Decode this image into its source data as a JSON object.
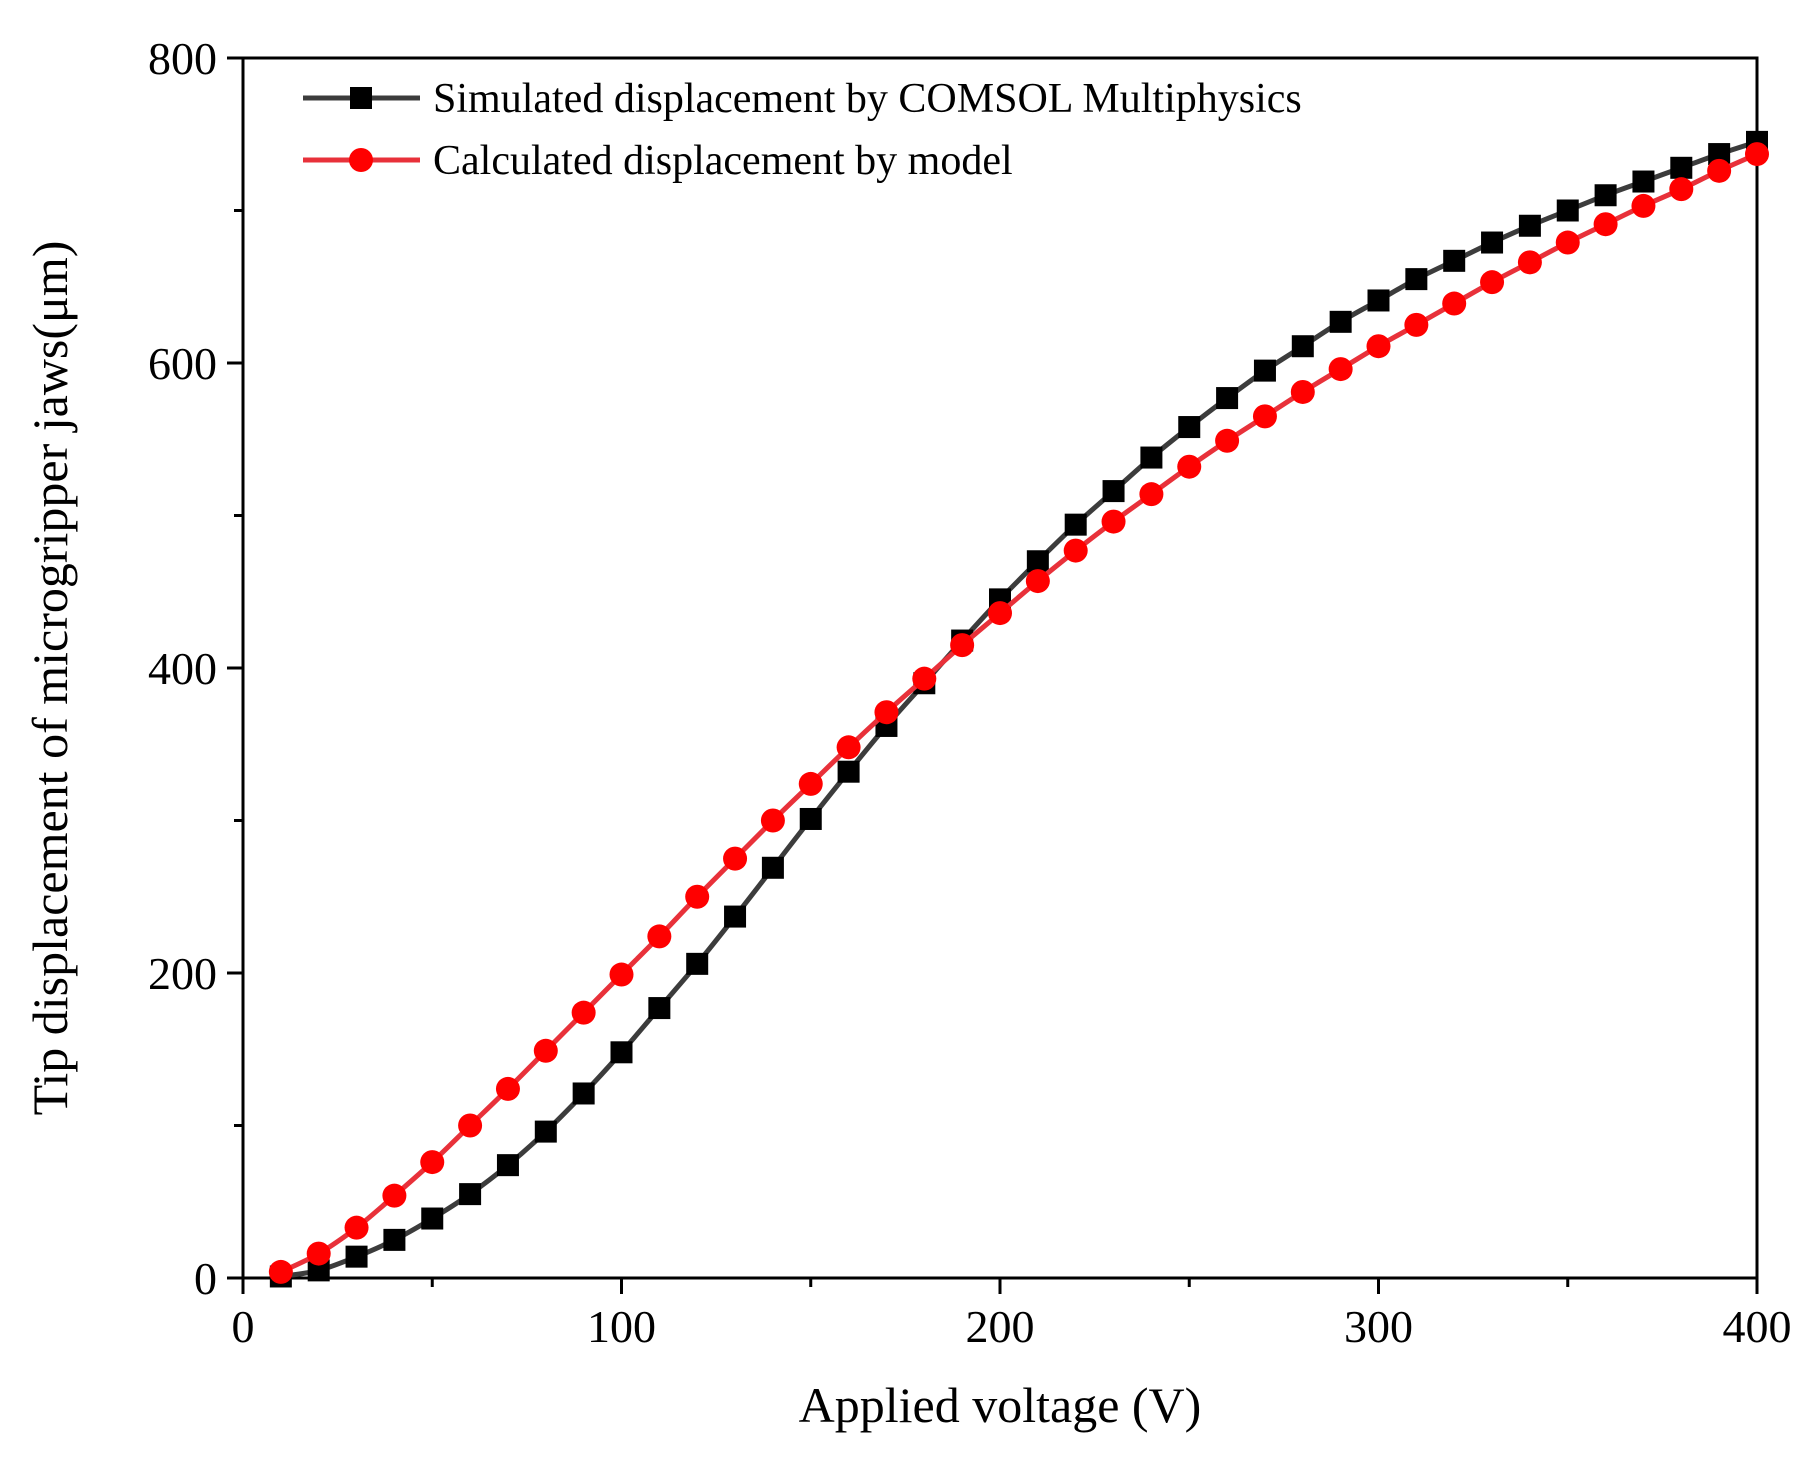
{
  "chart_data": {
    "type": "line",
    "title": "",
    "xlabel": "Applied voltage (V)",
    "ylabel": "Tip displacement of microgripper jaws(μm)",
    "xlim": [
      0,
      400
    ],
    "ylim": [
      0,
      800
    ],
    "xticks": [
      0,
      100,
      200,
      300,
      400
    ],
    "yticks": [
      0,
      200,
      400,
      600,
      800
    ],
    "x_tick_labels": [
      "0",
      "100",
      "200",
      "300",
      "400"
    ],
    "y_tick_labels": [
      "0",
      "200",
      "400",
      "600",
      "800"
    ],
    "grid": false,
    "legend_position": "top-left",
    "x": [
      10,
      20,
      30,
      40,
      50,
      60,
      70,
      80,
      90,
      100,
      110,
      120,
      130,
      140,
      150,
      160,
      170,
      180,
      190,
      200,
      210,
      220,
      230,
      240,
      250,
      260,
      270,
      280,
      290,
      300,
      310,
      320,
      330,
      340,
      350,
      360,
      370,
      380,
      390,
      400
    ],
    "series": [
      {
        "name": "Simulated displacement by COMSOL Multiphysics",
        "color": "#000000",
        "line_color": "#3c3c3c",
        "marker": "square",
        "values": [
          1,
          5,
          14,
          25,
          39,
          55,
          74,
          96,
          121,
          148,
          177,
          206,
          237,
          269,
          301,
          332,
          362,
          390,
          418,
          445,
          470,
          494,
          516,
          538,
          558,
          577,
          595,
          611,
          627,
          641,
          655,
          667,
          679,
          690,
          700,
          710,
          719,
          728,
          737,
          745
        ]
      },
      {
        "name": "Calculated displacement by model",
        "color": "#ff0000",
        "line_color": "#e8313a",
        "marker": "circle",
        "values": [
          4,
          16,
          33,
          54,
          76,
          100,
          124,
          149,
          174,
          199,
          224,
          250,
          275,
          300,
          324,
          348,
          371,
          393,
          415,
          436,
          457,
          477,
          496,
          514,
          532,
          549,
          565,
          581,
          596,
          611,
          625,
          639,
          653,
          666,
          679,
          691,
          703,
          714,
          726,
          737
        ]
      }
    ]
  }
}
